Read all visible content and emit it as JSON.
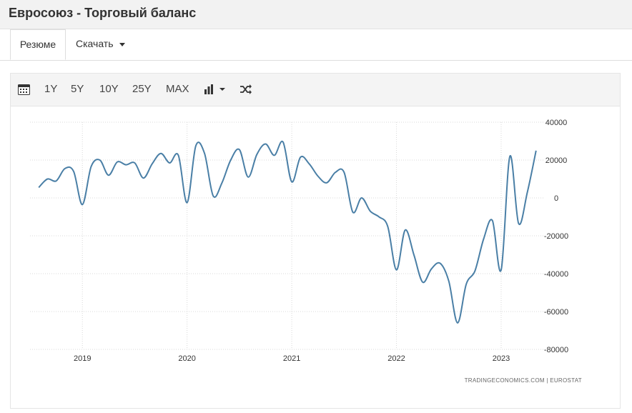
{
  "page": {
    "title": "Евросоюз - Торговый баланс"
  },
  "tabs": [
    {
      "label": "Резюме"
    },
    {
      "label": "Скачать"
    }
  ],
  "toolbar": {
    "calendar_icon": "calendar-icon",
    "ranges": [
      "1Y",
      "5Y",
      "10Y",
      "25Y",
      "MAX"
    ],
    "chart_type_icon": "bar-chart-icon",
    "shuffle_icon": "shuffle-icon"
  },
  "credit": "TRADINGECONOMICS.COM  |  EUROSTAT",
  "colors": {
    "line": "#4a7fa6",
    "grid": "#d8d8d8",
    "title_bar": "#f2f2f2"
  },
  "chart_data": {
    "type": "line",
    "title": "",
    "xlabel": "",
    "ylabel": "",
    "ylim": [
      -80000,
      40000
    ],
    "yticks": [
      40000,
      20000,
      0,
      -20000,
      -40000,
      -60000,
      -80000
    ],
    "ytick_labels": [
      "40000",
      "20000",
      "0",
      "-20000",
      "-40000",
      "-60000",
      "-80000"
    ],
    "xticks": [
      "2019",
      "2020",
      "2021",
      "2022",
      "2023"
    ],
    "xlim": [
      "2018-07",
      "2023-06"
    ],
    "grid": true,
    "y_axis_position": "right",
    "series": [
      {
        "x": [
          "2018-08",
          "2018-09",
          "2018-10",
          "2018-11",
          "2018-12",
          "2019-01",
          "2019-02",
          "2019-03",
          "2019-04",
          "2019-05",
          "2019-06",
          "2019-07",
          "2019-08",
          "2019-09",
          "2019-10",
          "2019-11",
          "2019-12",
          "2020-01",
          "2020-02",
          "2020-03",
          "2020-04",
          "2020-05",
          "2020-06",
          "2020-07",
          "2020-08",
          "2020-09",
          "2020-10",
          "2020-11",
          "2020-12",
          "2021-01",
          "2021-02",
          "2021-03",
          "2021-04",
          "2021-05",
          "2021-06",
          "2021-07",
          "2021-08",
          "2021-09",
          "2021-10",
          "2021-11",
          "2021-12",
          "2022-01",
          "2022-02",
          "2022-03",
          "2022-04",
          "2022-05",
          "2022-06",
          "2022-07",
          "2022-08",
          "2022-09",
          "2022-10",
          "2022-11",
          "2022-12",
          "2023-01",
          "2023-02",
          "2023-03",
          "2023-04",
          "2023-05"
        ],
        "values": [
          5500,
          10000,
          9000,
          15500,
          14000,
          -3500,
          16500,
          20000,
          12000,
          19000,
          17500,
          18500,
          10500,
          18000,
          23500,
          18500,
          22500,
          -2500,
          27500,
          23500,
          1000,
          8000,
          20000,
          25500,
          11000,
          23000,
          28500,
          22500,
          29500,
          8500,
          21500,
          18000,
          11500,
          8000,
          13500,
          13500,
          -7500,
          0,
          -7000,
          -10000,
          -15000,
          -38000,
          -17000,
          -30000,
          -44500,
          -37500,
          -34500,
          -44000,
          -66000,
          -45500,
          -38500,
          -21500,
          -12000,
          -38000,
          22000,
          -13500,
          3000,
          25000
        ]
      }
    ]
  }
}
